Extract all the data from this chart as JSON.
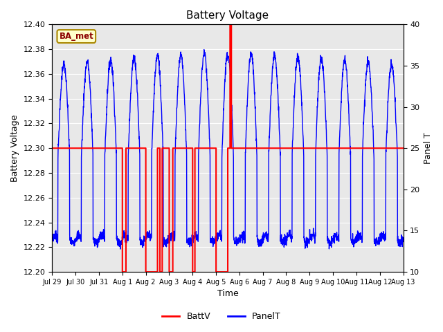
{
  "title": "Battery Voltage",
  "xlabel": "Time",
  "ylabel_left": "Battery Voltage",
  "ylabel_right": "Panel T",
  "ylim_left": [
    12.2,
    12.4
  ],
  "ylim_right": [
    10,
    40
  ],
  "yticks_left": [
    12.2,
    12.22,
    12.24,
    12.26,
    12.28,
    12.3,
    12.32,
    12.34,
    12.36,
    12.38,
    12.4
  ],
  "yticks_right": [
    10,
    15,
    20,
    25,
    30,
    35,
    40
  ],
  "xtick_positions": [
    0,
    1,
    2,
    3,
    4,
    5,
    6,
    7,
    8,
    9,
    10,
    11,
    12,
    13,
    14,
    15
  ],
  "xtick_labels": [
    "Jul 29",
    "Jul 30",
    "Jul 31",
    "Aug 1",
    "Aug 2",
    "Aug 3",
    "Aug 4",
    "Aug 5",
    "Aug 6",
    "Aug 7",
    "Aug 8",
    "Aug 9",
    "Aug 10",
    "Aug 11",
    "Aug 12",
    "Aug 13"
  ],
  "bg_color": "#e8e8e8",
  "legend_label": "BA_met",
  "legend_bg": "#ffffcc",
  "legend_border": "#aa8800",
  "batt_color": "red",
  "panel_color": "blue",
  "n_days": 15,
  "batt_base": 12.3,
  "batt_low": 12.2,
  "batt_high": 12.4,
  "panel_t_min": 10,
  "panel_t_max": 40,
  "v_min": 12.2,
  "v_max": 12.4
}
